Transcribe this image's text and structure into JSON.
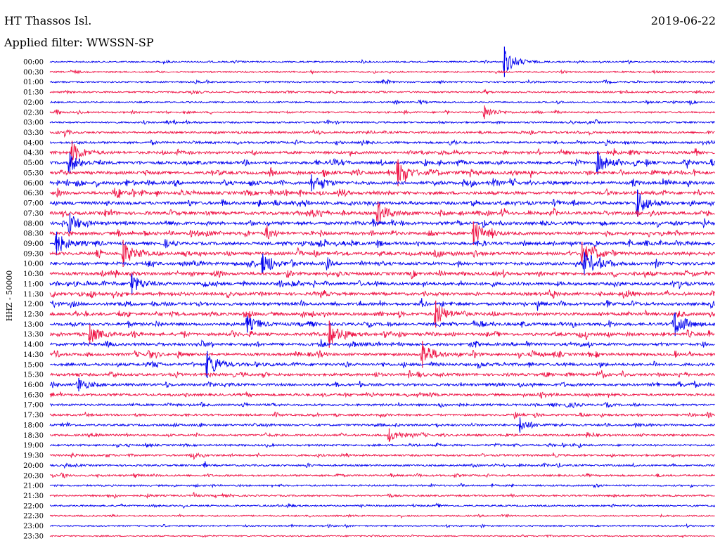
{
  "header": {
    "station": "HT Thassos Isl.",
    "date": "2019-06-22",
    "filter_label": "Applied filter: WWSSN-SP"
  },
  "channel_label": "HHZ - 50000",
  "colors": {
    "odd_trace": "#0000ee",
    "even_trace": "#ee1144"
  },
  "chart_data": {
    "type": "helicorder",
    "title": "HT Thassos Isl.",
    "date": "2019-06-22",
    "filter": "WWSSN-SP",
    "ylabel": "HHZ - 50000",
    "row_minutes": 30,
    "colors": [
      "#0000ee",
      "#ee1144"
    ],
    "row_times": [
      "00:00",
      "00:30",
      "01:00",
      "01:30",
      "02:00",
      "02:30",
      "03:00",
      "03:30",
      "04:00",
      "04:30",
      "05:00",
      "05:30",
      "06:00",
      "06:30",
      "07:00",
      "07:30",
      "08:00",
      "08:30",
      "09:00",
      "09:30",
      "10:00",
      "10:30",
      "11:00",
      "11:30",
      "12:00",
      "12:30",
      "13:00",
      "13:30",
      "14:00",
      "14:30",
      "15:00",
      "15:30",
      "16:00",
      "16:30",
      "17:00",
      "17:30",
      "18:00",
      "18:30",
      "19:00",
      "19:30",
      "20:00",
      "20:30",
      "21:00",
      "21:30",
      "22:00",
      "22:30",
      "23:00",
      "23:30"
    ],
    "activity_levels": [
      0.3,
      0.3,
      0.35,
      0.35,
      0.3,
      0.4,
      0.4,
      0.55,
      0.6,
      0.8,
      0.9,
      1.0,
      1.0,
      1.0,
      1.0,
      1.0,
      1.0,
      1.0,
      1.0,
      1.0,
      1.0,
      1.0,
      1.0,
      0.95,
      0.95,
      0.95,
      0.95,
      0.9,
      0.9,
      0.85,
      0.85,
      0.8,
      0.75,
      0.7,
      0.6,
      0.55,
      0.55,
      0.55,
      0.5,
      0.5,
      0.45,
      0.45,
      0.4,
      0.4,
      0.35,
      0.3,
      0.25,
      0.2
    ],
    "events": [
      {
        "row": 0,
        "minute": 20.5,
        "amplitude": 18
      },
      {
        "row": 5,
        "minute": 19.6,
        "amplitude": 8
      },
      {
        "row": 9,
        "minute": 1.0,
        "amplitude": 14
      },
      {
        "row": 10,
        "minute": 0.9,
        "amplitude": 12
      },
      {
        "row": 10,
        "minute": 24.7,
        "amplitude": 14
      },
      {
        "row": 11,
        "minute": 15.7,
        "amplitude": 16
      },
      {
        "row": 12,
        "minute": 11.8,
        "amplitude": 10
      },
      {
        "row": 14,
        "minute": 26.5,
        "amplitude": 16
      },
      {
        "row": 15,
        "minute": 14.8,
        "amplitude": 14
      },
      {
        "row": 16,
        "minute": 0.9,
        "amplitude": 12
      },
      {
        "row": 17,
        "minute": 19.1,
        "amplitude": 14
      },
      {
        "row": 18,
        "minute": 0.3,
        "amplitude": 14
      },
      {
        "row": 19,
        "minute": 3.3,
        "amplitude": 16
      },
      {
        "row": 19,
        "minute": 24.0,
        "amplitude": 14
      },
      {
        "row": 20,
        "minute": 9.6,
        "amplitude": 12
      },
      {
        "row": 20,
        "minute": 24.1,
        "amplitude": 14
      },
      {
        "row": 22,
        "minute": 3.7,
        "amplitude": 12
      },
      {
        "row": 25,
        "minute": 17.4,
        "amplitude": 16
      },
      {
        "row": 26,
        "minute": 8.9,
        "amplitude": 10
      },
      {
        "row": 26,
        "minute": 28.2,
        "amplitude": 14
      },
      {
        "row": 27,
        "minute": 1.8,
        "amplitude": 12
      },
      {
        "row": 27,
        "minute": 12.6,
        "amplitude": 16
      },
      {
        "row": 29,
        "minute": 16.8,
        "amplitude": 16
      },
      {
        "row": 30,
        "minute": 7.1,
        "amplitude": 16
      },
      {
        "row": 32,
        "minute": 1.3,
        "amplitude": 8
      },
      {
        "row": 36,
        "minute": 21.2,
        "amplitude": 9
      },
      {
        "row": 37,
        "minute": 15.3,
        "amplitude": 8
      }
    ]
  }
}
